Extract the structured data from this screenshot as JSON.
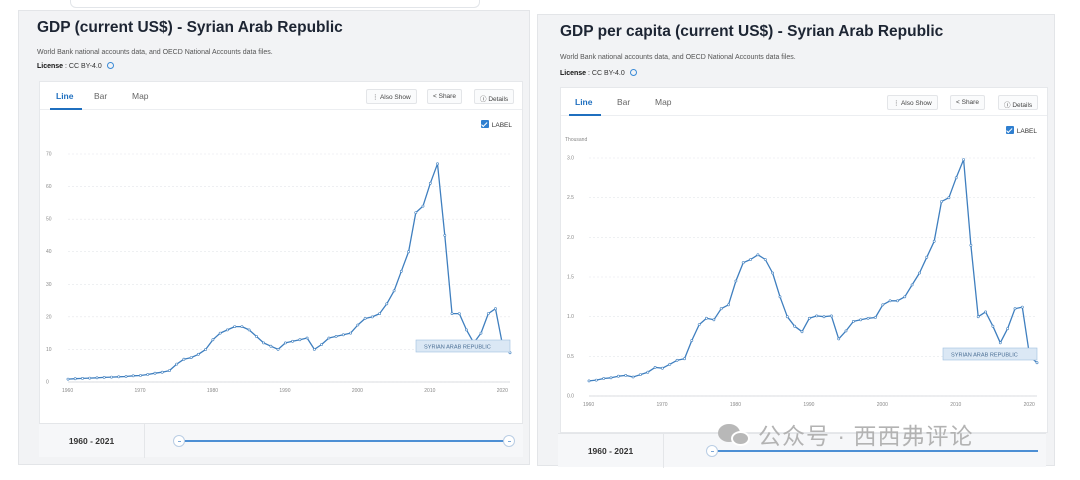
{
  "panels": [
    {
      "title": "GDP (current US$) - Syrian Arab Republic",
      "source": "World Bank national accounts data, and OECD National Accounts data files.",
      "license_label": "License",
      "license_value": ": CC BY-4.0",
      "tabs": [
        "Line",
        "Bar",
        "Map"
      ],
      "buttons": {
        "also_show": "Also Show",
        "share": "Share",
        "details": "Details"
      },
      "label_toggle": "LABEL",
      "range_label": "1960 - 2021"
    },
    {
      "title": "GDP per capita (current US$) - Syrian Arab Republic",
      "source": "World Bank national accounts data, and OECD National Accounts data files.",
      "license_label": "License",
      "license_value": ": CC BY-4.0",
      "tabs": [
        "Line",
        "Bar",
        "Map"
      ],
      "buttons": {
        "also_show": "Also Show",
        "share": "Share",
        "details": "Details"
      },
      "label_toggle": "LABEL",
      "range_label": "1960 - 2021"
    }
  ],
  "watermark": "公众号 · 西西弗评论",
  "colors": {
    "line": "#3f7fbf",
    "accent": "#1f6fbf",
    "label_bg": "#dbe8f5"
  },
  "chart_data": [
    {
      "type": "line",
      "title": "GDP (current US$) - Syrian Arab Republic",
      "xlabel": "",
      "ylabel": "",
      "unit_label": "",
      "series_label": "SYRIAN ARAB REPUBLIC",
      "x_ticks": [
        "1960",
        "1970",
        "1980",
        "1990",
        "2000",
        "2010",
        "2020"
      ],
      "y_ticks": [
        "0",
        "10",
        "20",
        "30",
        "40",
        "50",
        "60",
        "70"
      ],
      "xlim": [
        1960,
        2021
      ],
      "ylim": [
        0,
        70
      ],
      "grid": true,
      "x": [
        1960,
        1961,
        1962,
        1963,
        1964,
        1965,
        1966,
        1967,
        1968,
        1969,
        1970,
        1971,
        1972,
        1973,
        1974,
        1975,
        1976,
        1977,
        1978,
        1979,
        1980,
        1981,
        1982,
        1983,
        1984,
        1985,
        1986,
        1987,
        1988,
        1989,
        1990,
        1991,
        1992,
        1993,
        1994,
        1995,
        1996,
        1997,
        1998,
        1999,
        2000,
        2001,
        2002,
        2003,
        2004,
        2005,
        2006,
        2007,
        2008,
        2009,
        2010,
        2011,
        2012,
        2013,
        2014,
        2015,
        2016,
        2017,
        2018,
        2019,
        2020,
        2021
      ],
      "series": [
        {
          "name": "SYRIAN ARAB REPUBLIC",
          "values": [
            0.9,
            1.0,
            1.1,
            1.2,
            1.3,
            1.4,
            1.5,
            1.6,
            1.7,
            1.9,
            2.0,
            2.3,
            2.7,
            3.0,
            3.5,
            5.5,
            7.0,
            7.5,
            8.5,
            10.0,
            13.0,
            15.0,
            16.0,
            17.0,
            17.0,
            16.0,
            14.0,
            12.0,
            11.0,
            10.0,
            12.0,
            12.5,
            13.0,
            13.5,
            10.0,
            11.5,
            13.5,
            14.0,
            14.5,
            15.0,
            17.5,
            19.5,
            20.0,
            21.0,
            24.0,
            28.0,
            34.0,
            40.0,
            52.0,
            54.0,
            61.0,
            67.0,
            45.0,
            21.0,
            21.0,
            16.0,
            12.0,
            15.0,
            21.0,
            22.5,
            11.0,
            9.0
          ]
        }
      ]
    },
    {
      "type": "line",
      "title": "GDP per capita (current US$) - Syrian Arab Republic",
      "xlabel": "",
      "ylabel": "",
      "unit_label": "Thousand",
      "series_label": "SYRIAN ARAB REPUBLIC",
      "x_ticks": [
        "1960",
        "1970",
        "1980",
        "1990",
        "2000",
        "2010",
        "2020"
      ],
      "y_ticks": [
        "0.0",
        "0.5",
        "1.0",
        "1.5",
        "2.0",
        "2.5",
        "3.0"
      ],
      "xlim": [
        1960,
        2021
      ],
      "ylim": [
        0,
        3.0
      ],
      "grid": true,
      "x": [
        1960,
        1961,
        1962,
        1963,
        1964,
        1965,
        1966,
        1967,
        1968,
        1969,
        1970,
        1971,
        1972,
        1973,
        1974,
        1975,
        1976,
        1977,
        1978,
        1979,
        1980,
        1981,
        1982,
        1983,
        1984,
        1985,
        1986,
        1987,
        1988,
        1989,
        1990,
        1991,
        1992,
        1993,
        1994,
        1995,
        1996,
        1997,
        1998,
        1999,
        2000,
        2001,
        2002,
        2003,
        2004,
        2005,
        2006,
        2007,
        2008,
        2009,
        2010,
        2011,
        2012,
        2013,
        2014,
        2015,
        2016,
        2017,
        2018,
        2019,
        2020,
        2021
      ],
      "series": [
        {
          "name": "SYRIAN ARAB REPUBLIC",
          "values": [
            0.19,
            0.2,
            0.22,
            0.23,
            0.25,
            0.26,
            0.24,
            0.27,
            0.3,
            0.36,
            0.35,
            0.4,
            0.45,
            0.47,
            0.7,
            0.9,
            0.98,
            0.96,
            1.1,
            1.15,
            1.45,
            1.68,
            1.72,
            1.78,
            1.72,
            1.55,
            1.25,
            1.0,
            0.88,
            0.81,
            0.98,
            1.01,
            1.0,
            1.01,
            0.72,
            0.82,
            0.94,
            0.96,
            0.98,
            0.99,
            1.15,
            1.2,
            1.2,
            1.25,
            1.4,
            1.55,
            1.75,
            1.95,
            2.45,
            2.5,
            2.75,
            2.98,
            1.9,
            1.0,
            1.06,
            0.88,
            0.67,
            0.85,
            1.1,
            1.12,
            0.5,
            0.42
          ]
        }
      ]
    }
  ]
}
